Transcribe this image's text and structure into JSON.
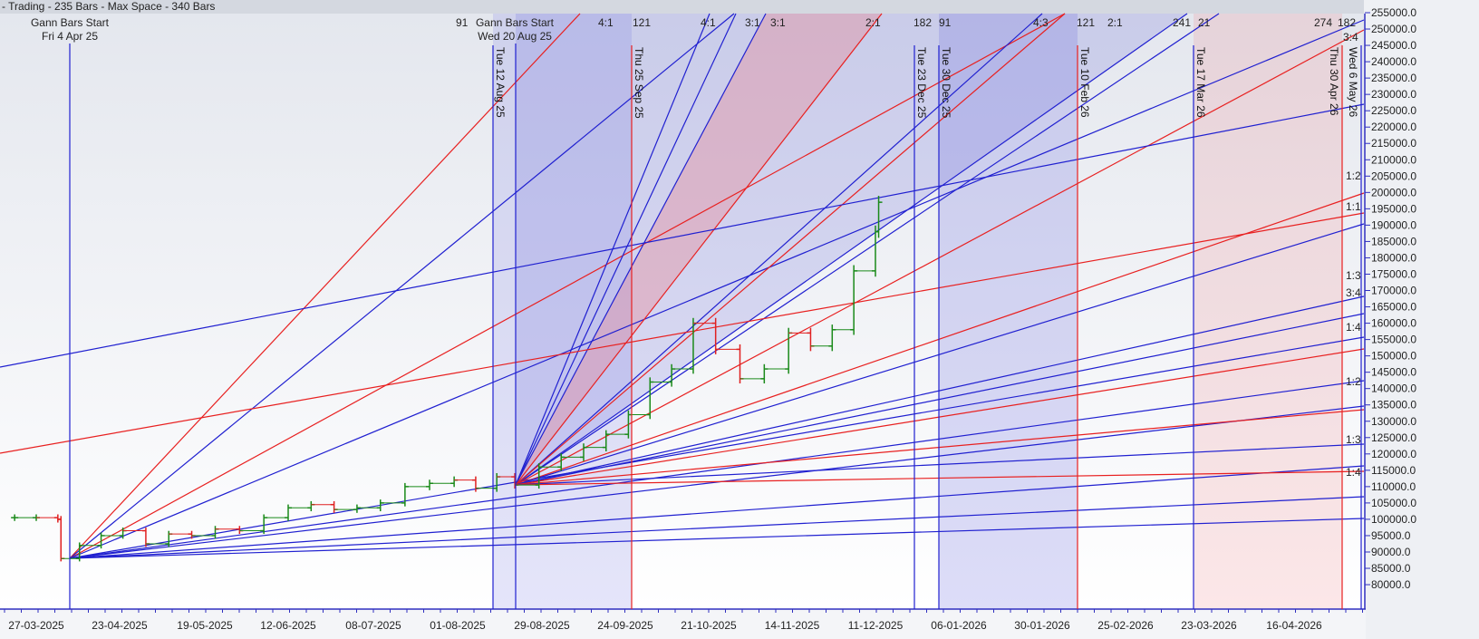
{
  "header": {
    "title": "- Trading - 235 Bars -  Max Space - 340 Bars"
  },
  "chart_data": {
    "type": "bar",
    "subtype": "ohlc-with-gann-fans",
    "x_tick_labels": [
      "27-03-2025",
      "23-04-2025",
      "19-05-2025",
      "12-06-2025",
      "08-07-2025",
      "01-08-2025",
      "29-08-2025",
      "24-09-2025",
      "21-10-2025",
      "14-11-2025",
      "11-12-2025",
      "06-01-2026",
      "30-01-2026",
      "25-02-2026",
      "23-03-2026",
      "16-04-2026"
    ],
    "y_tick_labels": [
      "255000.0",
      "250000.0",
      "245000.0",
      "240000.0",
      "235000.0",
      "230000.0",
      "225000.0",
      "220000.0",
      "215000.0",
      "210000.0",
      "205000.0",
      "200000.0",
      "195000.0",
      "190000.0",
      "185000.0",
      "180000.0",
      "175000.0",
      "170000.0",
      "165000.0",
      "160000.0",
      "155000.0",
      "150000.0",
      "145000.0",
      "140000.0",
      "135000.0",
      "130000.0",
      "125000.0",
      "120000.0",
      "115000.0",
      "110000.0",
      "105000.0",
      "100000.0",
      "95000.0",
      "90000.0",
      "85000.0",
      "80000.0"
    ],
    "ylim": [
      80000,
      255000
    ],
    "y_axis_position": "right",
    "grid": false,
    "colors": {
      "up": "#1a8a1a",
      "down": "#e02020",
      "fan_blue": "#2020d0",
      "fan_red": "#e82020"
    },
    "prices": [
      [
        "2025-03-20",
        100500
      ],
      [
        "2025-03-27",
        100500
      ],
      [
        "2025-04-03",
        100000
      ],
      [
        "2025-04-04",
        88000
      ],
      [
        "2025-04-10",
        92000
      ],
      [
        "2025-04-17",
        95000
      ],
      [
        "2025-04-24",
        96500
      ],
      [
        "2025-05-01",
        92500
      ],
      [
        "2025-05-08",
        95500
      ],
      [
        "2025-05-15",
        95000
      ],
      [
        "2025-05-22",
        97000
      ],
      [
        "2025-05-29",
        96500
      ],
      [
        "2025-06-05",
        100500
      ],
      [
        "2025-06-12",
        103500
      ],
      [
        "2025-06-19",
        104500
      ],
      [
        "2025-06-26",
        103000
      ],
      [
        "2025-07-03",
        103500
      ],
      [
        "2025-07-10",
        105000
      ],
      [
        "2025-07-17",
        110000
      ],
      [
        "2025-07-24",
        111000
      ],
      [
        "2025-07-31",
        112000
      ],
      [
        "2025-08-07",
        109500
      ],
      [
        "2025-08-14",
        113000
      ],
      [
        "2025-08-20",
        110500
      ],
      [
        "2025-08-28",
        116000
      ],
      [
        "2025-09-04",
        119000
      ],
      [
        "2025-09-11",
        122000
      ],
      [
        "2025-09-18",
        126000
      ],
      [
        "2025-09-25",
        132000
      ],
      [
        "2025-10-02",
        142000
      ],
      [
        "2025-10-09",
        146000
      ],
      [
        "2025-10-16",
        160000
      ],
      [
        "2025-10-23",
        152000
      ],
      [
        "2025-10-30",
        143000
      ],
      [
        "2025-11-06",
        146000
      ],
      [
        "2025-11-13",
        157000
      ],
      [
        "2025-11-20",
        153000
      ],
      [
        "2025-11-27",
        158000
      ],
      [
        "2025-12-04",
        176000
      ],
      [
        "2025-12-11",
        188000
      ],
      [
        "2025-12-12",
        197000
      ]
    ],
    "gann_starts": [
      {
        "label": "Gann Bars Start",
        "date": "Fri 4 Apr 25"
      },
      {
        "label": "Gann Bars Start",
        "date": "Wed 20 Aug 25"
      }
    ],
    "time_markers": [
      {
        "label": "Tue 12 Aug 25",
        "color": "blue"
      },
      {
        "label": "Thu 25 Sep 25",
        "color": "red"
      },
      {
        "label": "Tue 23 Dec 25",
        "color": "blue"
      },
      {
        "label": "Tue 30 Dec 25",
        "color": "blue"
      },
      {
        "label": "Tue 10 Feb 26",
        "color": "red"
      },
      {
        "label": "Tue 17 Mar 26",
        "color": "blue"
      },
      {
        "label": "Thu 30 Apr 26",
        "color": "red"
      },
      {
        "label": "Wed 6 May 26",
        "color": "blue"
      }
    ],
    "top_labels": [
      "91",
      "4:1",
      "121",
      "4:1",
      "3:1",
      "3:1",
      "2:1",
      "182",
      "91",
      "4:3",
      "121",
      "2:1",
      "241",
      "21",
      "274",
      "182",
      "3:4"
    ],
    "right_ratio_labels": [
      "1:2",
      "1:1",
      "1:3",
      "3:4",
      "1:4",
      "1:2",
      "1:3",
      "1:4"
    ]
  }
}
